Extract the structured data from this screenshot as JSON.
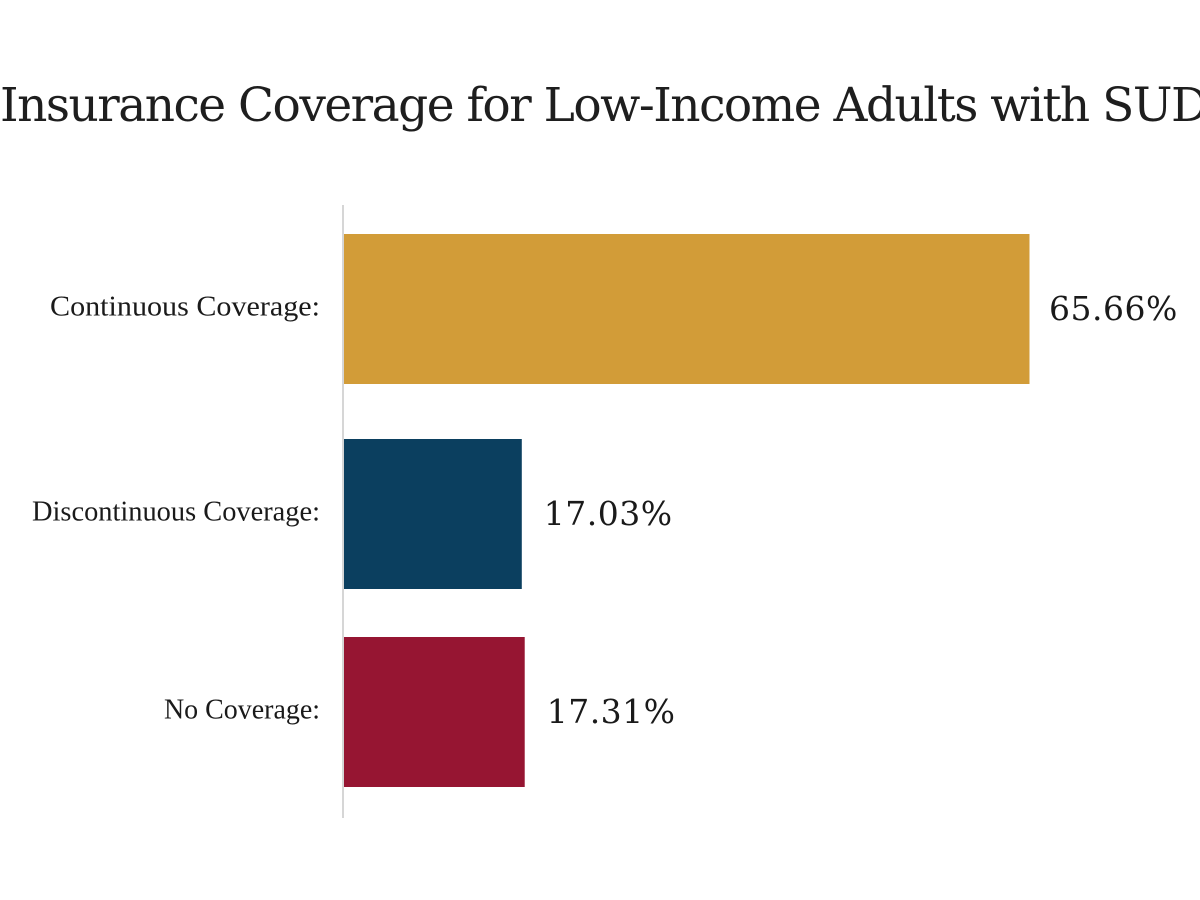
{
  "chart_data": {
    "type": "bar",
    "orientation": "horizontal",
    "title": "Insurance Coverage for Low-Income Adults with SUD",
    "categories": [
      "Continuous Coverage:",
      "Discontinuous Coverage:",
      "No Coverage:"
    ],
    "values": [
      65.66,
      17.03,
      17.31
    ],
    "value_labels": [
      "65.66%",
      "17.03%",
      "17.31%"
    ],
    "colors": [
      "#D29C38",
      "#0B3F5F",
      "#961532"
    ],
    "grid": false,
    "legend": "none"
  }
}
